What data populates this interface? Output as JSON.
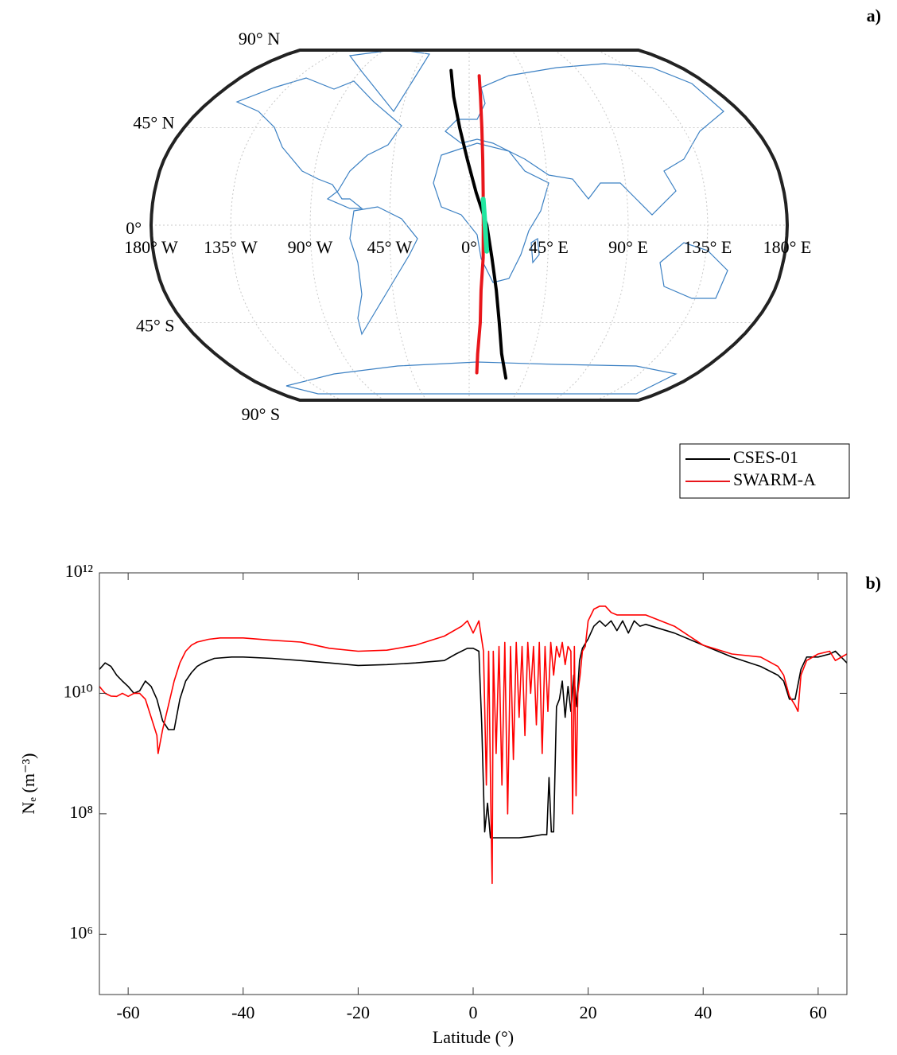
{
  "chart_data": [
    {
      "type": "map",
      "projection": "robinson",
      "title": "a)",
      "grid": true,
      "legend": "southeast",
      "lat_ticks": [
        {
          "value": 90,
          "label": "90° N"
        },
        {
          "value": 45,
          "label": "45° N"
        },
        {
          "value": 0,
          "label": "0°"
        },
        {
          "value": -45,
          "label": "45° S"
        },
        {
          "value": -90,
          "label": "90° S"
        }
      ],
      "lon_ticks": [
        {
          "value": -180,
          "label": "180° W"
        },
        {
          "value": -135,
          "label": "135° W"
        },
        {
          "value": -90,
          "label": "90° W"
        },
        {
          "value": -45,
          "label": "45° W"
        },
        {
          "value": 0,
          "label": "0°"
        },
        {
          "value": 45,
          "label": "45° E"
        },
        {
          "value": 90,
          "label": "90° E"
        },
        {
          "value": 135,
          "label": "135° E"
        },
        {
          "value": 180,
          "label": "180° E"
        }
      ],
      "series": [
        {
          "name": "CSES-01",
          "color": "#000000",
          "lat": [
            74,
            60,
            45,
            30,
            15,
            0,
            -15,
            -30,
            -45,
            -60,
            -73
          ],
          "lon": [
            -15,
            -11,
            -6,
            -1,
            4,
            10,
            13,
            16,
            19,
            23,
            30
          ]
        },
        {
          "name": "SWARM-A",
          "color": "#e8161b",
          "lat": [
            71,
            60,
            45,
            30,
            15,
            0,
            -15,
            -30,
            -45,
            -60,
            -70
          ],
          "lon": [
            8,
            8,
            8,
            8,
            8,
            8,
            8,
            7,
            7,
            6,
            6
          ]
        },
        {
          "color": "#22e6a0",
          "lat": [
            12,
            0,
            -12
          ],
          "lon": [
            8,
            9,
            10
          ]
        }
      ]
    },
    {
      "type": "line",
      "title": "b)",
      "xlabel": "Latitude (°)",
      "ylabel": "Nₑ (m⁻³)",
      "log_y": true,
      "xlim": [
        -65,
        65
      ],
      "xticks": [
        -60,
        -40,
        -20,
        0,
        20,
        40,
        60
      ],
      "ylim": [
        100000,
        1000000000000
      ],
      "yticks": [
        {
          "value": 1000000,
          "label": "10⁶"
        },
        {
          "value": 100000000,
          "label": "10⁸"
        },
        {
          "value": 10000000000,
          "label": "10¹⁰"
        },
        {
          "value": 1000000000000,
          "label": "10¹²"
        }
      ],
      "series": [
        {
          "color": "#000000",
          "x": [
            -65,
            -64,
            -63,
            -62,
            -61,
            -60,
            -59,
            -58,
            -57,
            -56,
            -55,
            -54,
            -53,
            -52,
            -51,
            -50,
            -49,
            -48,
            -47,
            -46,
            -45,
            -42,
            -40,
            -35,
            -30,
            -25,
            -20,
            -15,
            -10,
            -5,
            -3,
            -1,
            0,
            1,
            1.5,
            2,
            2.5,
            3,
            5,
            8,
            10,
            12,
            12.8,
            13.2,
            13.6,
            14,
            14.5,
            15,
            15.5,
            16,
            16.5,
            17,
            17.5,
            18,
            18.5,
            19,
            20,
            21,
            22,
            23,
            24,
            25,
            26,
            27,
            28,
            29,
            30,
            35,
            40,
            45,
            50,
            53,
            54,
            55,
            56,
            57,
            58,
            60,
            62,
            63,
            64,
            65
          ],
          "values": [
            25000000000.0,
            32000000000.0,
            28000000000.0,
            20000000000.0,
            16000000000.0,
            13000000000.0,
            10000000000.0,
            11000000000.0,
            16000000000.0,
            13000000000.0,
            8000000000.0,
            3500000000.0,
            2500000000.0,
            2500000000.0,
            8000000000.0,
            16000000000.0,
            22000000000.0,
            28000000000.0,
            32000000000.0,
            35000000000.0,
            38000000000.0,
            40000000000.0,
            40000000000.0,
            38000000000.0,
            35000000000.0,
            32000000000.0,
            29000000000.0,
            30000000000.0,
            32000000000.0,
            35000000000.0,
            45000000000.0,
            56000000000.0,
            56000000000.0,
            50000000000.0,
            3000000000.0,
            50000000.0,
            150000000.0,
            40000000.0,
            40000000.0,
            40000000.0,
            42000000.0,
            45000000.0,
            45000000.0,
            400000000.0,
            50000000.0,
            50000000.0,
            6000000000.0,
            8000000000.0,
            16000000000.0,
            4000000000.0,
            13000000000.0,
            5000000000.0,
            20000000000.0,
            6000000000.0,
            35000000000.0,
            56000000000.0,
            80000000000.0,
            130000000000.0,
            160000000000.0,
            130000000000.0,
            160000000000.0,
            110000000000.0,
            160000000000.0,
            100000000000.0,
            160000000000.0,
            130000000000.0,
            140000000000.0,
            100000000000.0,
            63000000000.0,
            40000000000.0,
            28000000000.0,
            20000000000.0,
            16000000000.0,
            8000000000.0,
            8000000000.0,
            25000000000.0,
            40000000000.0,
            40000000000.0,
            45000000000.0,
            50000000000.0,
            40000000000.0,
            32000000000.0
          ]
        },
        {
          "color": "#ff0000",
          "x": [
            -65,
            -64,
            -63,
            -62,
            -61,
            -60,
            -59,
            -58,
            -57,
            -56,
            -55,
            -54.8,
            -54,
            -53,
            -52,
            -51,
            -50,
            -49,
            -48,
            -46,
            -44,
            -40,
            -35,
            -30,
            -25,
            -20,
            -15,
            -10,
            -5,
            -2,
            -1,
            0,
            1,
            1.8,
            2.3,
            2.7,
            3.1,
            3.3,
            3.5,
            4,
            4.5,
            5,
            5.5,
            6,
            6.5,
            7,
            7.5,
            8,
            8.5,
            9,
            9.5,
            10,
            10.5,
            11,
            11.5,
            12,
            12.5,
            13,
            13.5,
            14,
            14.5,
            15,
            15.5,
            16,
            16.5,
            17,
            17.3,
            17.6,
            17.9,
            18.2,
            18.6,
            19,
            19.5,
            20,
            21,
            22,
            23,
            24,
            25,
            30,
            35,
            40,
            45,
            50,
            53,
            54,
            55,
            56,
            56.5,
            57,
            58,
            60,
            62,
            63,
            65
          ],
          "values": [
            13000000000.0,
            10000000000.0,
            9000000000.0,
            8900000000.0,
            10000000000.0,
            8900000000.0,
            10000000000.0,
            10000000000.0,
            8000000000.0,
            4000000000.0,
            2000000000.0,
            1000000000.0,
            2500000000.0,
            6300000000.0,
            16000000000.0,
            32000000000.0,
            50000000000.0,
            63000000000.0,
            71000000000.0,
            79000000000.0,
            83000000000.0,
            83000000000.0,
            76000000000.0,
            71000000000.0,
            56000000000.0,
            50000000000.0,
            52000000000.0,
            63000000000.0,
            89000000000.0,
            130000000000.0,
            160000000000.0,
            100000000000.0,
            160000000000.0,
            50000000000.0,
            300000000.0,
            50000000000.0,
            100000000.0,
            7000000.0,
            50000000000.0,
            1000000000.0,
            60000000000.0,
            300000000.0,
            70000000000.0,
            100000000.0,
            60000000000.0,
            800000000.0,
            70000000000.0,
            4000000000.0,
            60000000000.0,
            2000000000.0,
            70000000000.0,
            10000000000.0,
            60000000000.0,
            3000000000.0,
            70000000000.0,
            1000000000.0,
            60000000000.0,
            5000000000.0,
            70000000000.0,
            20000000000.0,
            60000000000.0,
            40000000000.0,
            70000000000.0,
            30000000000.0,
            60000000000.0,
            50000000000.0,
            100000000.0,
            60000000000.0,
            200000000.0,
            10000000000.0,
            20000000000.0,
            50000000000.0,
            60000000000.0,
            160000000000.0,
            250000000000.0,
            280000000000.0,
            280000000000.0,
            220000000000.0,
            200000000000.0,
            200000000000.0,
            130000000000.0,
            63000000000.0,
            45000000000.0,
            40000000000.0,
            28000000000.0,
            20000000000.0,
            9000000000.0,
            6300000000.0,
            5000000000.0,
            20000000000.0,
            35000000000.0,
            45000000000.0,
            50000000000.0,
            35000000000.0,
            45000000000.0
          ]
        }
      ]
    }
  ]
}
